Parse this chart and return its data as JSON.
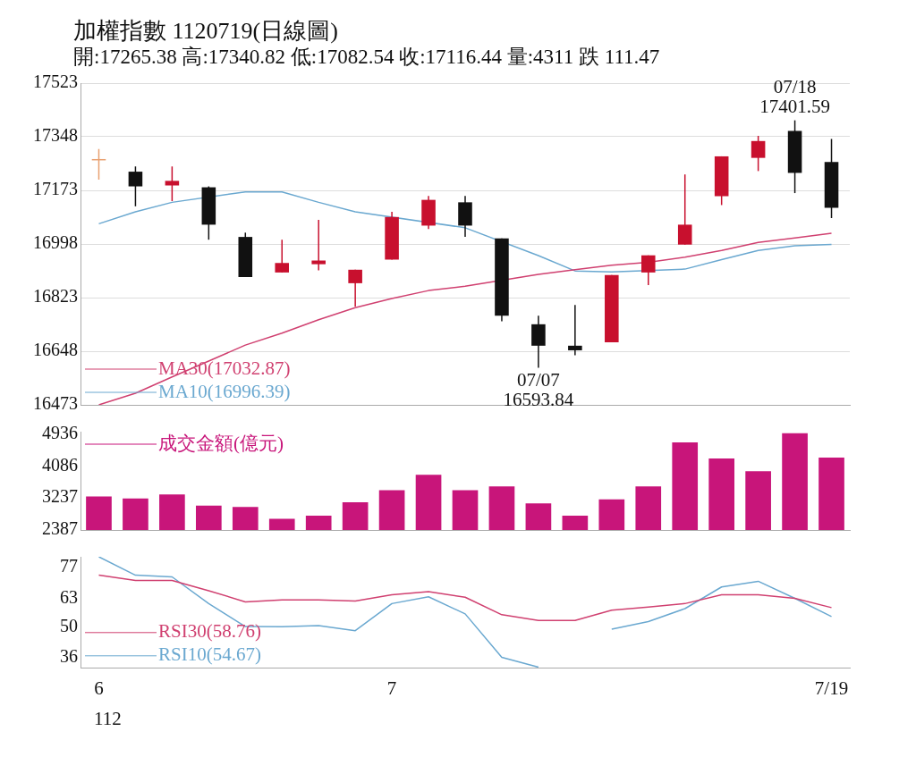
{
  "chart_data": [
    {
      "type": "candlestick",
      "title": "加權指數 1120719(日線圖)",
      "subtitle": "開:17265.38 高:17340.82 低:17082.54 收:17116.44 量:4311 跌 111.47",
      "categories": [
        null,
        null,
        null,
        null,
        null,
        null,
        null,
        null,
        null,
        null,
        null,
        null,
        null,
        null,
        null,
        null,
        null,
        null,
        null,
        null,
        null
      ],
      "ohlc": [
        [
          17273,
          17308,
          17208,
          17273
        ],
        [
          17234,
          17251,
          17121,
          17186
        ],
        [
          17189,
          17251,
          17138,
          17204
        ],
        [
          17183,
          17186,
          17012,
          17061
        ],
        [
          17021,
          17035,
          16890,
          16890
        ],
        [
          16905,
          17012,
          16905,
          16936
        ],
        [
          16932,
          17077,
          16912,
          16944
        ],
        [
          16870,
          16914,
          16794,
          16914
        ],
        [
          16947,
          17103,
          16947,
          17086
        ],
        [
          17058,
          17155,
          17047,
          17142
        ],
        [
          17134,
          17155,
          17021,
          17058
        ],
        [
          17016,
          17016,
          16746,
          16764
        ],
        [
          16736,
          16764,
          16593.84,
          16666
        ],
        [
          16666,
          16799,
          16635,
          16651
        ],
        [
          16677,
          16897,
          16677,
          16897
        ],
        [
          16905,
          16961,
          16864,
          16961
        ],
        [
          16996,
          17225,
          16996,
          17061
        ],
        [
          17154,
          17284,
          17125,
          17284
        ],
        [
          17279,
          17351,
          17236,
          17334
        ],
        [
          17367,
          17401.59,
          17164,
          17230
        ],
        [
          17265.38,
          17340.82,
          17082.54,
          17116.44
        ]
      ],
      "colors": [
        "#e8a070",
        "#111111",
        "#c8102e",
        "#111111",
        "#111111",
        "#c8102e",
        "#c8102e",
        "#c8102e",
        "#c8102e",
        "#c8102e",
        "#111111",
        "#111111",
        "#111111",
        "#111111",
        "#c8102e",
        "#c8102e",
        "#c8102e",
        "#c8102e",
        "#c8102e",
        "#111111",
        "#111111"
      ],
      "series": [
        {
          "type": "line",
          "name": "MA30(17032.87)",
          "color": "#d04070",
          "values": [
            16473,
            16511,
            16564,
            16616,
            16668,
            16707,
            16751,
            16790,
            16820,
            16846,
            16860,
            null,
            16899,
            16914,
            16929,
            16938,
            16955,
            16977,
            17003,
            17018,
            17032.87
          ]
        },
        {
          "type": "line",
          "name": "MA10(16996.39)",
          "color": "#6aa8d0",
          "values": [
            17064,
            17103,
            17134,
            null,
            17168,
            17168,
            17134,
            17103,
            null,
            null,
            17051,
            null,
            16960,
            16910,
            16907,
            null,
            16916,
            16947,
            16977,
            16992,
            16996.39
          ]
        }
      ],
      "ylim": [
        16473,
        17523
      ],
      "yticks": [
        16473,
        16648,
        16823,
        16998,
        17173,
        17348,
        17523
      ],
      "grid": "y",
      "legend": "bottom left",
      "tick_labels": "y",
      "annotations": [
        {
          "text": "07/07\n16593.84",
          "y": 16593.84
        },
        {
          "text": "07/18\n17401.59",
          "y": 17401.59
        }
      ]
    },
    {
      "type": "bar",
      "categories": [
        null,
        null,
        null,
        null,
        null,
        null,
        null,
        null,
        null,
        null,
        null,
        null,
        null,
        null,
        null,
        null,
        null,
        null,
        null,
        null,
        null
      ],
      "series": [
        {
          "name": "成交金額(億元)",
          "color": "#c8157a",
          "values": [
            3275,
            3226,
            3332,
            3037,
            3001,
            2682,
            2765,
            3124,
            3445,
            3851,
            3445,
            3544,
            3096,
            2765,
            3200,
            3544,
            4712,
            4290,
            3946,
            4961,
            4311
          ]
        }
      ],
      "ylim": [
        2387,
        5000
      ],
      "yticks": [
        2387,
        3237,
        4086,
        4936
      ],
      "legend": "top left",
      "tick_labels": "y"
    },
    {
      "type": "line",
      "categories": [
        "6",
        null,
        null,
        null,
        null,
        null,
        null,
        null,
        "7",
        null,
        null,
        null,
        null,
        null,
        null,
        null,
        null,
        null,
        null,
        null,
        "7/19"
      ],
      "series": [
        {
          "name": "RSI30(58.76)",
          "color": "#d04070",
          "values": [
            73.6,
            71.2,
            71.2,
            66.5,
            61.4,
            62.3,
            62.3,
            61.8,
            64.6,
            66.1,
            63.5,
            55.5,
            52.9,
            52.9,
            57.6,
            59.0,
            60.6,
            64.6,
            64.6,
            63.0,
            58.76
          ]
        },
        {
          "name": "RSI10(54.67)",
          "color": "#6aa8d0",
          "values": [
            82,
            73.6,
            72.8,
            60.6,
            50.1,
            50,
            50.5,
            48.2,
            60.6,
            63.7,
            55.9,
            36,
            31.5,
            null,
            48.9,
            52.4,
            58.3,
            68.2,
            70.8,
            63.0,
            54.67
          ]
        }
      ],
      "ylim": [
        31,
        82
      ],
      "yticks": [
        77,
        63,
        50,
        36
      ],
      "legend": "bottom left",
      "annotations": [
        "112"
      ]
    }
  ]
}
